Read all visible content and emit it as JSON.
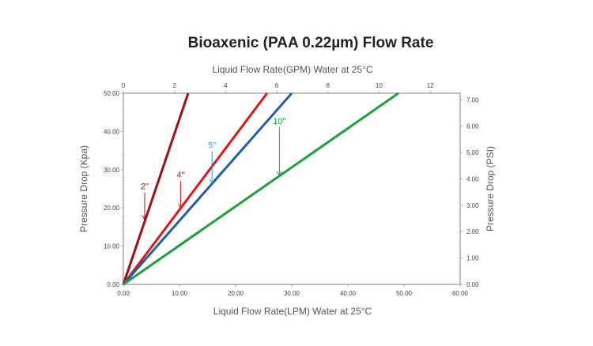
{
  "chart_data": {
    "type": "line",
    "title": "Bioaxenic (PAA 0.22µm) Flow Rate",
    "xlabel": "Liquid Flow Rate(LPM) Water at 25°C",
    "x2label": "Liquid Flow Rate(GPM) Water at 25°C",
    "ylabel": "Pressure Drop (Kpa)",
    "y2label": "Pressure Drop (PSI)",
    "xlim": [
      0,
      60
    ],
    "ylim": [
      0,
      50
    ],
    "x2lim": [
      0,
      13.17
    ],
    "y2lim": [
      0,
      7.25
    ],
    "xticks": [
      "0.00",
      "10.00",
      "20.00",
      "30.00",
      "40.00",
      "50.00",
      "60.00"
    ],
    "yticks": [
      "0.00",
      "10.00",
      "20.00",
      "30.00",
      "40.00",
      "50.00"
    ],
    "x2ticks": [
      "0",
      "2",
      "4",
      "6",
      "8",
      "10",
      "12"
    ],
    "y2ticks": [
      "0.00",
      "1.00",
      "2.00",
      "3.00",
      "4.00",
      "5.00",
      "6.00",
      "7.00"
    ],
    "grid": false,
    "series": [
      {
        "name": "2\"",
        "color": "#a01010",
        "x": [
          0,
          11.55
        ],
        "y": [
          0,
          50
        ],
        "label_at": [
          3.8,
          17
        ]
      },
      {
        "name": "4\"",
        "color": "#e01818",
        "x": [
          0,
          25.6
        ],
        "y": [
          0,
          50
        ],
        "label_at": [
          10.2,
          20
        ]
      },
      {
        "name": "5\"",
        "color": "#1f5fa8",
        "labelColor": "#3399cc",
        "x": [
          0,
          30.0
        ],
        "y": [
          0,
          50
        ],
        "label_at": [
          15.8,
          26.5
        ]
      },
      {
        "name": "10\"",
        "color": "#1fa040",
        "x": [
          0,
          49.0
        ],
        "y": [
          0,
          50
        ],
        "label_at": [
          27.8,
          28.5
        ]
      }
    ]
  }
}
